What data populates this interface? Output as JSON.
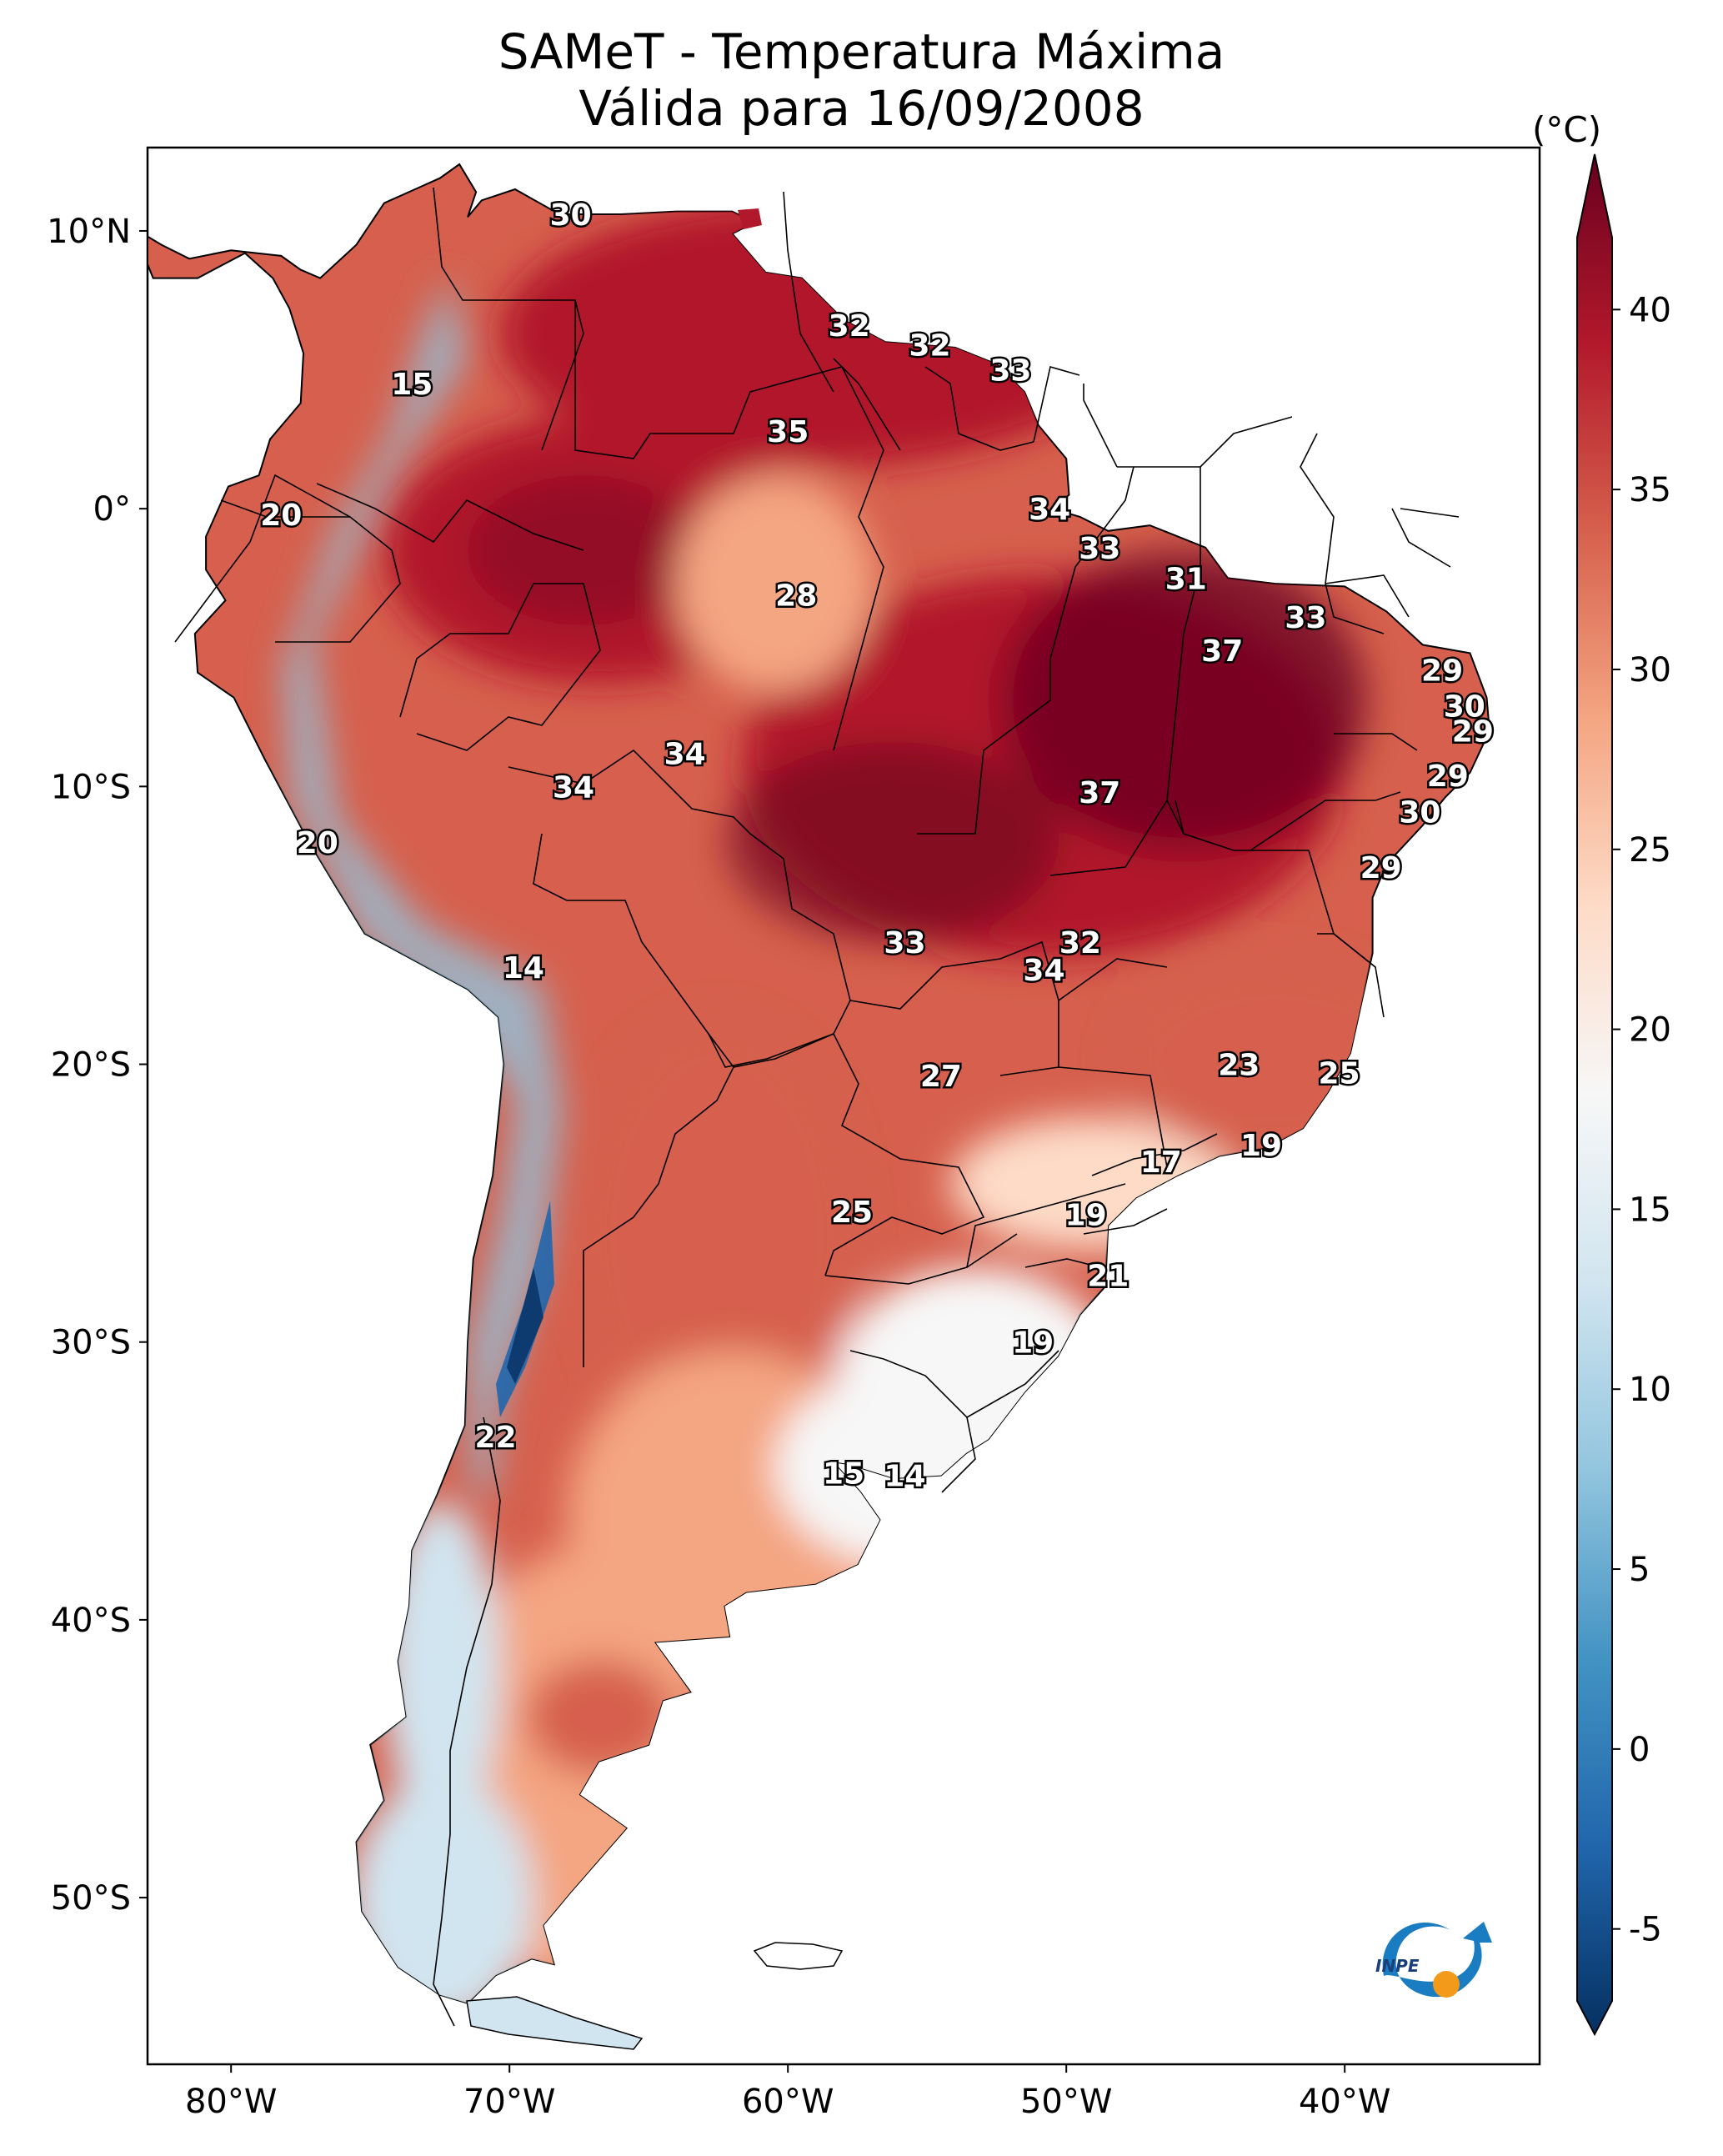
{
  "title": {
    "line1": "SAMeT - Temperatura Máxima",
    "line2": "Válida para 16/09/2008"
  },
  "map": {
    "lon_range": [
      -83,
      -33
    ],
    "lat_range": [
      -56,
      13
    ],
    "lon_ticks": [
      {
        "value": -80,
        "label": "80°W"
      },
      {
        "value": -70,
        "label": "70°W"
      },
      {
        "value": -60,
        "label": "60°W"
      },
      {
        "value": -50,
        "label": "50°W"
      },
      {
        "value": -40,
        "label": "40°W"
      }
    ],
    "lat_ticks": [
      {
        "value": 10,
        "label": "10°N"
      },
      {
        "value": 0,
        "label": "0°"
      },
      {
        "value": -10,
        "label": "10°S"
      },
      {
        "value": -20,
        "label": "20°S"
      },
      {
        "value": -30,
        "label": "30°S"
      },
      {
        "value": -40,
        "label": "40°S"
      },
      {
        "value": -50,
        "label": "50°S"
      }
    ],
    "station_labels": [
      {
        "lon": -67.8,
        "lat": 10.6,
        "text": "30"
      },
      {
        "lon": -57.8,
        "lat": 6.6,
        "text": "32"
      },
      {
        "lon": -54.9,
        "lat": 5.9,
        "text": "32"
      },
      {
        "lon": -52.0,
        "lat": 5.0,
        "text": "33"
      },
      {
        "lon": -73.5,
        "lat": 4.5,
        "text": "15"
      },
      {
        "lon": -60.0,
        "lat": 2.8,
        "text": "35"
      },
      {
        "lon": -50.6,
        "lat": 0.0,
        "text": "34"
      },
      {
        "lon": -78.2,
        "lat": -0.2,
        "text": "20"
      },
      {
        "lon": -48.8,
        "lat": -1.4,
        "text": "33"
      },
      {
        "lon": -45.7,
        "lat": -2.5,
        "text": "31"
      },
      {
        "lon": -59.7,
        "lat": -3.1,
        "text": "28"
      },
      {
        "lon": -41.4,
        "lat": -3.9,
        "text": "33"
      },
      {
        "lon": -44.4,
        "lat": -5.1,
        "text": "37"
      },
      {
        "lon": -36.5,
        "lat": -5.8,
        "text": "29"
      },
      {
        "lon": -35.7,
        "lat": -7.1,
        "text": "30"
      },
      {
        "lon": -35.4,
        "lat": -8.0,
        "text": "29"
      },
      {
        "lon": -63.7,
        "lat": -8.8,
        "text": "34"
      },
      {
        "lon": -36.3,
        "lat": -9.6,
        "text": "29"
      },
      {
        "lon": -67.7,
        "lat": -10.0,
        "text": "34"
      },
      {
        "lon": -48.8,
        "lat": -10.2,
        "text": "37"
      },
      {
        "lon": -37.3,
        "lat": -10.9,
        "text": "30"
      },
      {
        "lon": -76.9,
        "lat": -12.0,
        "text": "20"
      },
      {
        "lon": -38.7,
        "lat": -12.9,
        "text": "29"
      },
      {
        "lon": -55.8,
        "lat": -15.6,
        "text": "33"
      },
      {
        "lon": -49.5,
        "lat": -15.6,
        "text": "32"
      },
      {
        "lon": -50.8,
        "lat": -16.6,
        "text": "34"
      },
      {
        "lon": -69.5,
        "lat": -16.5,
        "text": "14"
      },
      {
        "lon": -43.8,
        "lat": -20.0,
        "text": "23"
      },
      {
        "lon": -40.2,
        "lat": -20.3,
        "text": "25"
      },
      {
        "lon": -54.5,
        "lat": -20.4,
        "text": "27"
      },
      {
        "lon": -43.0,
        "lat": -22.9,
        "text": "19"
      },
      {
        "lon": -46.6,
        "lat": -23.5,
        "text": "17"
      },
      {
        "lon": -57.7,
        "lat": -25.3,
        "text": "25"
      },
      {
        "lon": -49.3,
        "lat": -25.4,
        "text": "19"
      },
      {
        "lon": -48.5,
        "lat": -27.6,
        "text": "21"
      },
      {
        "lon": -51.2,
        "lat": -30.0,
        "text": "19"
      },
      {
        "lon": -70.5,
        "lat": -33.4,
        "text": "22"
      },
      {
        "lon": -58.0,
        "lat": -34.7,
        "text": "15"
      },
      {
        "lon": -55.8,
        "lat": -34.8,
        "text": "14"
      }
    ]
  },
  "colorbar": {
    "unit": "(°C)",
    "min": -7,
    "max": 42,
    "ticks": [
      {
        "value": 40,
        "label": "40"
      },
      {
        "value": 35,
        "label": "35"
      },
      {
        "value": 30,
        "label": "30"
      },
      {
        "value": 25,
        "label": "25"
      },
      {
        "value": 20,
        "label": "20"
      },
      {
        "value": 15,
        "label": "15"
      },
      {
        "value": 10,
        "label": "10"
      },
      {
        "value": 5,
        "label": "5"
      },
      {
        "value": 0,
        "label": "0"
      },
      {
        "value": -5,
        "label": "-5"
      }
    ],
    "colors": [
      "#053061",
      "#2166ac",
      "#4393c3",
      "#92c5de",
      "#d1e5f0",
      "#f7f7f7",
      "#fddbc7",
      "#f4a582",
      "#d6604d",
      "#b2182b",
      "#67001f"
    ]
  },
  "logo": {
    "text": "INPE",
    "colors": {
      "blue": "#1a7cc1",
      "orange": "#f39a1b"
    }
  }
}
